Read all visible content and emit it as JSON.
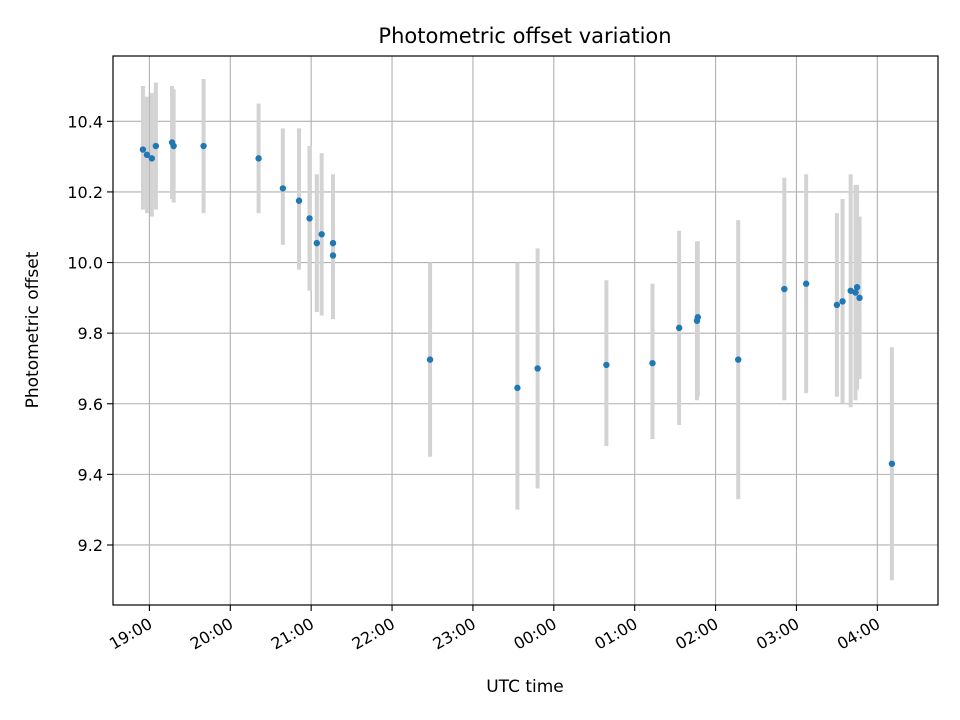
{
  "chart_data": {
    "type": "scatter",
    "title": "Photometric offset variation",
    "xlabel": "UTC time",
    "ylabel": "Photometric offset",
    "x_unit": "hours",
    "x_ticks": [
      {
        "value": 19,
        "label": "19:00"
      },
      {
        "value": 20,
        "label": "20:00"
      },
      {
        "value": 21,
        "label": "21:00"
      },
      {
        "value": 22,
        "label": "22:00"
      },
      {
        "value": 23,
        "label": "23:00"
      },
      {
        "value": 24,
        "label": "00:00"
      },
      {
        "value": 25,
        "label": "01:00"
      },
      {
        "value": 26,
        "label": "02:00"
      },
      {
        "value": 27,
        "label": "03:00"
      },
      {
        "value": 28,
        "label": "04:00"
      }
    ],
    "y_ticks": [
      {
        "value": 9.2,
        "label": "9.2"
      },
      {
        "value": 9.4,
        "label": "9.4"
      },
      {
        "value": 9.6,
        "label": "9.6"
      },
      {
        "value": 9.8,
        "label": "9.8"
      },
      {
        "value": 10.0,
        "label": "10.0"
      },
      {
        "value": 10.2,
        "label": "10.2"
      },
      {
        "value": 10.4,
        "label": "10.4"
      }
    ],
    "xlim": [
      18.55,
      28.75
    ],
    "ylim": [
      9.03,
      10.585
    ],
    "grid": true,
    "colors": {
      "point": "#1f77b4",
      "errorbar": "#d3d3d3",
      "grid": "#b0b0b0"
    },
    "points": [
      {
        "x": 18.92,
        "y": 10.32,
        "lo": 10.15,
        "hi": 10.5
      },
      {
        "x": 18.97,
        "y": 10.305,
        "lo": 10.14,
        "hi": 10.47
      },
      {
        "x": 19.03,
        "y": 10.295,
        "lo": 10.13,
        "hi": 10.48
      },
      {
        "x": 19.08,
        "y": 10.33,
        "lo": 10.15,
        "hi": 10.51
      },
      {
        "x": 19.28,
        "y": 10.34,
        "lo": 10.18,
        "hi": 10.5
      },
      {
        "x": 19.3,
        "y": 10.33,
        "lo": 10.17,
        "hi": 10.49
      },
      {
        "x": 19.67,
        "y": 10.33,
        "lo": 10.14,
        "hi": 10.52
      },
      {
        "x": 20.35,
        "y": 10.295,
        "lo": 10.14,
        "hi": 10.45
      },
      {
        "x": 20.65,
        "y": 10.21,
        "lo": 10.05,
        "hi": 10.38
      },
      {
        "x": 20.85,
        "y": 10.175,
        "lo": 9.98,
        "hi": 10.38
      },
      {
        "x": 20.98,
        "y": 10.125,
        "lo": 9.92,
        "hi": 10.33
      },
      {
        "x": 21.07,
        "y": 10.055,
        "lo": 9.86,
        "hi": 10.25
      },
      {
        "x": 21.13,
        "y": 10.08,
        "lo": 9.85,
        "hi": 10.31
      },
      {
        "x": 21.27,
        "y": 10.055,
        "lo": 9.86,
        "hi": 10.25
      },
      {
        "x": 21.27,
        "y": 10.02,
        "lo": 9.84,
        "hi": 10.2
      },
      {
        "x": 22.47,
        "y": 9.725,
        "lo": 9.45,
        "hi": 10.0
      },
      {
        "x": 23.55,
        "y": 9.645,
        "lo": 9.3,
        "hi": 10.0
      },
      {
        "x": 23.8,
        "y": 9.7,
        "lo": 9.36,
        "hi": 10.04
      },
      {
        "x": 24.65,
        "y": 9.71,
        "lo": 9.48,
        "hi": 9.95
      },
      {
        "x": 25.22,
        "y": 9.715,
        "lo": 9.5,
        "hi": 9.94
      },
      {
        "x": 25.55,
        "y": 9.815,
        "lo": 9.54,
        "hi": 10.09
      },
      {
        "x": 25.77,
        "y": 9.835,
        "lo": 9.61,
        "hi": 10.06
      },
      {
        "x": 25.78,
        "y": 9.845,
        "lo": 9.62,
        "hi": 10.06
      },
      {
        "x": 26.28,
        "y": 9.725,
        "lo": 9.33,
        "hi": 10.12
      },
      {
        "x": 26.85,
        "y": 9.925,
        "lo": 9.61,
        "hi": 10.24
      },
      {
        "x": 27.12,
        "y": 9.94,
        "lo": 9.63,
        "hi": 10.25
      },
      {
        "x": 27.5,
        "y": 9.88,
        "lo": 9.62,
        "hi": 10.14
      },
      {
        "x": 27.57,
        "y": 9.89,
        "lo": 9.6,
        "hi": 10.18
      },
      {
        "x": 27.67,
        "y": 9.92,
        "lo": 9.59,
        "hi": 10.25
      },
      {
        "x": 27.73,
        "y": 9.915,
        "lo": 9.61,
        "hi": 10.22
      },
      {
        "x": 27.75,
        "y": 9.93,
        "lo": 9.64,
        "hi": 10.22
      },
      {
        "x": 27.78,
        "y": 9.9,
        "lo": 9.67,
        "hi": 10.13
      },
      {
        "x": 28.18,
        "y": 9.43,
        "lo": 9.1,
        "hi": 9.76
      }
    ]
  }
}
